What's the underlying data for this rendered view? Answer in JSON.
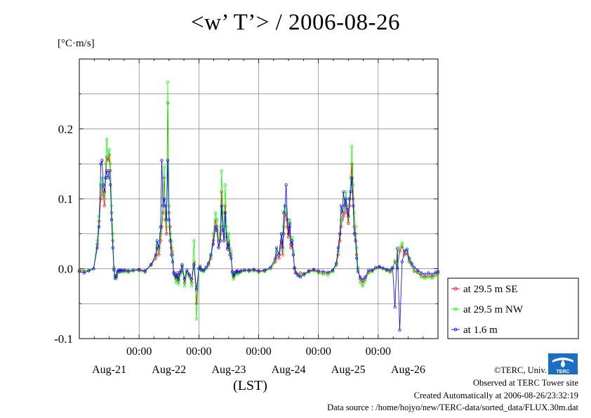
{
  "page": {
    "title": "<w’ T’> / 2006-08-26",
    "unit": "[°C·m/s]",
    "credits": {
      "copyright": "©TERC, Univ. Tsukuba",
      "observed": "Observed at TERC Tower site",
      "created": "Created Automatically at 2006-08-26/23:32:19",
      "source": "Data source : /home/hojyo/new/TERC-data/sorted_data/FLUX.30m.dat"
    },
    "logo_text": "TERC"
  },
  "chart_data": {
    "type": "line",
    "title": "<w’ T’> / 2006-08-26",
    "ylabel": "[°C·m/s]",
    "xlabel": "(LST)",
    "ylim": [
      -0.1,
      0.3
    ],
    "yticks": [
      -0.1,
      0.0,
      0.1,
      0.2
    ],
    "ytick_labels": [
      "-0.1",
      "0.0",
      "0.1",
      "0.2"
    ],
    "xlim_days": [
      0,
      6
    ],
    "day_ticks": [
      {
        "day": 1,
        "time": "00:00",
        "date": "Aug-22"
      },
      {
        "day": 2,
        "time": "00:00",
        "date": "Aug-23"
      },
      {
        "day": 3,
        "time": "00:00",
        "date": "Aug-24"
      },
      {
        "day": 4,
        "time": "00:00",
        "date": "Aug-25"
      },
      {
        "day": 5,
        "time": "00:00",
        "date": "Aug-26"
      }
    ],
    "date_labels": [
      "Aug-21",
      "Aug-22",
      "Aug-23",
      "Aug-24",
      "Aug-25",
      "Aug-26"
    ],
    "grid": true,
    "legend_position": "right",
    "series": [
      {
        "name": "at 29.5 m SE",
        "color": "#ff0000",
        "x": [
          0.0,
          0.08,
          0.16,
          0.24,
          0.3,
          0.33,
          0.36,
          0.38,
          0.4,
          0.42,
          0.44,
          0.46,
          0.48,
          0.5,
          0.52,
          0.54,
          0.56,
          0.58,
          0.6,
          0.62,
          0.64,
          0.66,
          0.68,
          0.7,
          0.72,
          0.76,
          0.82,
          0.9,
          1.0,
          1.1,
          1.2,
          1.28,
          1.3,
          1.33,
          1.36,
          1.38,
          1.4,
          1.42,
          1.44,
          1.46,
          1.48,
          1.5,
          1.52,
          1.54,
          1.56,
          1.58,
          1.6,
          1.62,
          1.64,
          1.66,
          1.68,
          1.7,
          1.72,
          1.76,
          1.8,
          1.84,
          1.88,
          1.92,
          1.96,
          2.0,
          2.02,
          2.04,
          2.08,
          2.12,
          2.16,
          2.2,
          2.24,
          2.28,
          2.3,
          2.33,
          2.36,
          2.38,
          2.4,
          2.42,
          2.44,
          2.46,
          2.48,
          2.5,
          2.52,
          2.54,
          2.56,
          2.58,
          2.6,
          2.62,
          2.64,
          2.66,
          2.7,
          2.76,
          2.84,
          2.92,
          3.0,
          3.1,
          3.2,
          3.28,
          3.3,
          3.34,
          3.38,
          3.4,
          3.42,
          3.44,
          3.46,
          3.48,
          3.5,
          3.52,
          3.54,
          3.56,
          3.58,
          3.6,
          3.62,
          3.66,
          3.7,
          3.76,
          3.84,
          3.92,
          4.0,
          4.08,
          4.16,
          4.24,
          4.3,
          4.33,
          4.36,
          4.38,
          4.4,
          4.42,
          4.44,
          4.46,
          4.48,
          4.5,
          4.52,
          4.54,
          4.56,
          4.58,
          4.6,
          4.62,
          4.64,
          4.66,
          4.7,
          4.74,
          4.78,
          4.84,
          4.9,
          4.96,
          5.02,
          5.08,
          5.14,
          5.2,
          5.24,
          5.28,
          5.32,
          5.36,
          5.4,
          5.44,
          5.48,
          5.52,
          5.56,
          5.6,
          5.66,
          5.72,
          5.78,
          5.84,
          5.9,
          5.96,
          6.0
        ],
        "y": [
          -0.002,
          -0.003,
          -0.002,
          0.0,
          0.035,
          0.068,
          0.1,
          0.118,
          0.105,
          0.09,
          0.13,
          0.16,
          0.155,
          0.163,
          0.14,
          0.08,
          0.04,
          0.0,
          -0.01,
          -0.012,
          -0.005,
          -0.003,
          -0.004,
          -0.002,
          -0.004,
          -0.003,
          -0.004,
          -0.003,
          -0.002,
          -0.004,
          0.005,
          0.015,
          0.03,
          0.02,
          0.04,
          0.06,
          0.08,
          0.13,
          0.07,
          0.05,
          0.237,
          0.08,
          0.06,
          0.03,
          0.02,
          -0.005,
          -0.01,
          -0.015,
          -0.01,
          -0.018,
          -0.008,
          -0.005,
          0.003,
          -0.02,
          -0.005,
          -0.01,
          -0.02,
          0.01,
          -0.05,
          0.0,
          0.003,
          -0.002,
          -0.003,
          0.0,
          0.005,
          0.015,
          0.04,
          0.07,
          0.06,
          0.03,
          0.05,
          0.11,
          0.06,
          0.04,
          0.09,
          0.05,
          0.03,
          0.04,
          0.025,
          0.02,
          -0.005,
          -0.012,
          -0.008,
          -0.006,
          -0.004,
          -0.006,
          -0.004,
          -0.002,
          -0.003,
          -0.002,
          -0.004,
          -0.003,
          0.0,
          0.01,
          0.02,
          0.015,
          0.04,
          0.02,
          0.05,
          0.075,
          0.08,
          0.06,
          0.045,
          0.06,
          0.03,
          0.035,
          0.02,
          0.0,
          -0.005,
          -0.008,
          -0.006,
          -0.007,
          -0.004,
          -0.002,
          -0.005,
          -0.006,
          -0.007,
          -0.003,
          0.005,
          0.02,
          0.04,
          0.06,
          0.07,
          0.075,
          0.08,
          0.1,
          0.08,
          0.065,
          0.09,
          0.11,
          0.15,
          0.1,
          0.06,
          0.05,
          0.02,
          0.0,
          -0.015,
          -0.02,
          -0.015,
          -0.005,
          -0.003,
          0.0,
          0.002,
          0.0,
          -0.002,
          -0.004,
          0.0,
          0.01,
          0.0,
          0.025,
          0.032,
          0.02,
          0.022,
          0.01,
          0.005,
          -0.003,
          -0.005,
          -0.01,
          -0.012,
          -0.01,
          -0.012,
          -0.008,
          -0.006
        ]
      },
      {
        "name": "at 29.5 m NW",
        "color": "#00ff00",
        "x": [
          0.0,
          0.08,
          0.16,
          0.24,
          0.3,
          0.33,
          0.36,
          0.38,
          0.4,
          0.42,
          0.44,
          0.46,
          0.48,
          0.5,
          0.52,
          0.54,
          0.56,
          0.58,
          0.6,
          0.62,
          0.64,
          0.66,
          0.68,
          0.7,
          0.72,
          0.76,
          0.82,
          0.9,
          1.0,
          1.1,
          1.2,
          1.28,
          1.3,
          1.33,
          1.36,
          1.38,
          1.4,
          1.42,
          1.44,
          1.46,
          1.48,
          1.5,
          1.52,
          1.54,
          1.56,
          1.58,
          1.6,
          1.62,
          1.64,
          1.66,
          1.68,
          1.7,
          1.72,
          1.76,
          1.8,
          1.84,
          1.88,
          1.92,
          1.96,
          2.0,
          2.02,
          2.04,
          2.08,
          2.12,
          2.16,
          2.2,
          2.24,
          2.28,
          2.3,
          2.33,
          2.36,
          2.38,
          2.4,
          2.42,
          2.44,
          2.46,
          2.48,
          2.5,
          2.52,
          2.54,
          2.56,
          2.58,
          2.6,
          2.62,
          2.64,
          2.66,
          2.7,
          2.76,
          2.84,
          2.92,
          3.0,
          3.1,
          3.2,
          3.28,
          3.3,
          3.34,
          3.38,
          3.4,
          3.42,
          3.44,
          3.46,
          3.48,
          3.5,
          3.52,
          3.54,
          3.56,
          3.58,
          3.6,
          3.62,
          3.66,
          3.7,
          3.76,
          3.84,
          3.92,
          4.0,
          4.08,
          4.16,
          4.24,
          4.3,
          4.33,
          4.36,
          4.38,
          4.4,
          4.42,
          4.44,
          4.46,
          4.48,
          4.5,
          4.52,
          4.54,
          4.56,
          4.58,
          4.6,
          4.62,
          4.64,
          4.66,
          4.7,
          4.74,
          4.78,
          4.84,
          4.9,
          4.96,
          5.02,
          5.08,
          5.14,
          5.2,
          5.24,
          5.28,
          5.32,
          5.36,
          5.4,
          5.44,
          5.48,
          5.52,
          5.56,
          5.6,
          5.66,
          5.72,
          5.78,
          5.84,
          5.9,
          5.96,
          6.0
        ],
        "y": [
          -0.003,
          -0.004,
          -0.002,
          0.0,
          0.04,
          0.075,
          0.12,
          0.13,
          0.11,
          0.1,
          0.15,
          0.185,
          0.16,
          0.17,
          0.15,
          0.09,
          0.05,
          0.002,
          -0.012,
          -0.014,
          -0.006,
          -0.004,
          -0.005,
          -0.003,
          -0.004,
          -0.004,
          -0.005,
          -0.003,
          -0.003,
          -0.005,
          0.006,
          0.018,
          0.035,
          0.025,
          0.05,
          0.07,
          0.09,
          0.145,
          0.08,
          0.06,
          0.267,
          0.09,
          0.05,
          0.04,
          0.025,
          -0.008,
          -0.012,
          -0.02,
          -0.012,
          -0.022,
          -0.01,
          -0.006,
          0.004,
          -0.025,
          -0.006,
          -0.012,
          -0.025,
          0.04,
          -0.072,
          0.0,
          0.004,
          -0.003,
          -0.004,
          0.0,
          0.006,
          0.018,
          0.05,
          0.08,
          0.07,
          0.04,
          0.06,
          0.14,
          0.08,
          0.05,
          0.12,
          0.06,
          0.035,
          0.05,
          0.03,
          0.025,
          -0.008,
          -0.015,
          -0.01,
          -0.008,
          -0.005,
          -0.008,
          -0.005,
          -0.003,
          -0.004,
          -0.003,
          -0.005,
          -0.004,
          0.0,
          0.012,
          0.025,
          0.02,
          0.05,
          0.025,
          0.06,
          0.09,
          0.085,
          0.07,
          0.05,
          0.07,
          0.04,
          0.045,
          0.025,
          0.002,
          -0.006,
          -0.01,
          -0.008,
          -0.009,
          -0.005,
          -0.003,
          -0.006,
          -0.008,
          -0.009,
          -0.004,
          0.006,
          0.025,
          0.05,
          0.07,
          0.08,
          0.085,
          0.09,
          0.11,
          0.09,
          0.07,
          0.1,
          0.13,
          0.175,
          0.12,
          0.08,
          0.06,
          0.03,
          0.002,
          -0.02,
          -0.025,
          -0.018,
          -0.006,
          -0.004,
          0.0,
          0.003,
          0.0,
          -0.003,
          -0.005,
          0.0,
          0.012,
          0.002,
          0.03,
          0.037,
          0.025,
          0.025,
          0.012,
          0.006,
          -0.004,
          -0.006,
          -0.012,
          -0.014,
          -0.012,
          -0.014,
          -0.01,
          -0.007
        ]
      },
      {
        "name": "at 1.6 m",
        "color": "#0000ff",
        "x": [
          0.0,
          0.08,
          0.16,
          0.24,
          0.3,
          0.33,
          0.36,
          0.38,
          0.4,
          0.42,
          0.44,
          0.46,
          0.48,
          0.5,
          0.52,
          0.54,
          0.56,
          0.58,
          0.6,
          0.62,
          0.64,
          0.66,
          0.68,
          0.7,
          0.72,
          0.76,
          0.82,
          0.9,
          1.0,
          1.1,
          1.2,
          1.28,
          1.3,
          1.33,
          1.36,
          1.38,
          1.4,
          1.42,
          1.44,
          1.46,
          1.48,
          1.5,
          1.52,
          1.54,
          1.56,
          1.58,
          1.6,
          1.62,
          1.64,
          1.66,
          1.68,
          1.7,
          1.72,
          1.76,
          1.8,
          1.84,
          1.88,
          1.92,
          1.96,
          2.0,
          2.02,
          2.04,
          2.08,
          2.12,
          2.16,
          2.2,
          2.24,
          2.28,
          2.3,
          2.33,
          2.36,
          2.38,
          2.4,
          2.42,
          2.44,
          2.46,
          2.48,
          2.5,
          2.52,
          2.54,
          2.56,
          2.58,
          2.6,
          2.62,
          2.64,
          2.66,
          2.7,
          2.76,
          2.84,
          2.92,
          3.0,
          3.1,
          3.2,
          3.28,
          3.3,
          3.34,
          3.38,
          3.4,
          3.42,
          3.44,
          3.46,
          3.48,
          3.5,
          3.52,
          3.54,
          3.56,
          3.58,
          3.6,
          3.62,
          3.66,
          3.7,
          3.76,
          3.84,
          3.92,
          4.0,
          4.08,
          4.16,
          4.24,
          4.3,
          4.33,
          4.36,
          4.38,
          4.4,
          4.42,
          4.44,
          4.46,
          4.48,
          4.5,
          4.52,
          4.54,
          4.56,
          4.58,
          4.6,
          4.62,
          4.64,
          4.66,
          4.7,
          4.74,
          4.78,
          4.84,
          4.9,
          4.96,
          5.02,
          5.08,
          5.14,
          5.2,
          5.24,
          5.28,
          5.32,
          5.36,
          5.4,
          5.44,
          5.48,
          5.52,
          5.56,
          5.6,
          5.66,
          5.72,
          5.78,
          5.84,
          5.9,
          5.96,
          6.0
        ],
        "y": [
          -0.004,
          -0.006,
          -0.003,
          0.0,
          0.03,
          0.06,
          0.15,
          0.155,
          0.12,
          0.11,
          0.13,
          0.14,
          0.13,
          0.14,
          0.12,
          0.07,
          0.03,
          -0.002,
          -0.014,
          -0.01,
          -0.004,
          -0.002,
          -0.003,
          -0.002,
          -0.003,
          -0.002,
          -0.003,
          -0.002,
          -0.001,
          -0.003,
          0.006,
          0.02,
          0.04,
          0.03,
          0.06,
          0.155,
          0.09,
          0.1,
          0.09,
          0.07,
          0.155,
          0.07,
          0.04,
          0.02,
          0.01,
          -0.006,
          -0.008,
          -0.012,
          -0.006,
          -0.015,
          -0.005,
          -0.003,
          0.006,
          -0.015,
          -0.002,
          -0.008,
          -0.015,
          0.006,
          -0.03,
          0.0,
          0.002,
          -0.001,
          -0.002,
          0.002,
          0.008,
          0.02,
          0.035,
          0.06,
          0.055,
          0.03,
          0.04,
          0.09,
          0.055,
          0.04,
          0.08,
          0.045,
          0.028,
          0.035,
          0.02,
          0.015,
          -0.004,
          -0.01,
          -0.006,
          -0.004,
          -0.003,
          -0.005,
          -0.003,
          -0.002,
          -0.002,
          -0.001,
          -0.003,
          -0.002,
          0.002,
          0.015,
          0.03,
          0.02,
          0.05,
          0.03,
          0.08,
          0.09,
          0.12,
          0.07,
          0.05,
          0.065,
          0.035,
          0.04,
          0.02,
          0.001,
          -0.006,
          -0.01,
          -0.012,
          -0.008,
          -0.003,
          -0.001,
          -0.003,
          -0.004,
          -0.005,
          -0.002,
          0.008,
          0.03,
          0.05,
          0.09,
          0.08,
          0.11,
          0.09,
          0.1,
          0.085,
          0.075,
          0.1,
          0.11,
          0.13,
          0.09,
          0.05,
          0.04,
          0.015,
          -0.004,
          -0.012,
          -0.016,
          -0.012,
          -0.002,
          -0.002,
          0.002,
          0.003,
          0.001,
          -0.001,
          -0.002,
          0.002,
          -0.055,
          0.029,
          -0.088,
          0.01,
          0.025,
          0.028,
          0.015,
          0.008,
          0.002,
          -0.002,
          -0.006,
          -0.008,
          -0.006,
          -0.008,
          -0.005,
          -0.004
        ]
      }
    ]
  }
}
